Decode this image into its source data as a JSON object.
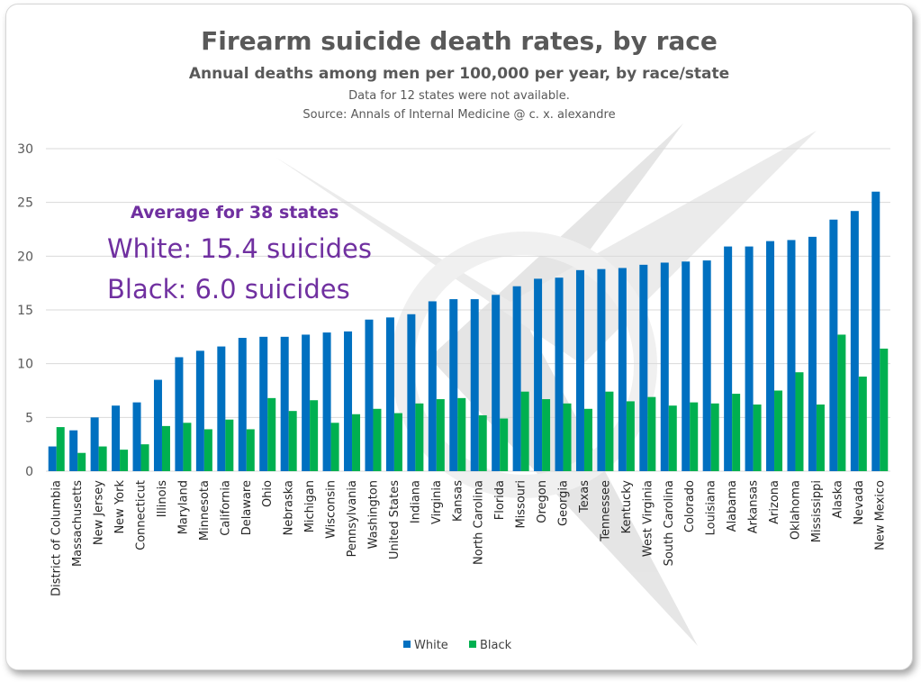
{
  "chart_data": {
    "type": "bar",
    "title": "Firearm suicide death rates, by race",
    "subtitle": "Annual deaths among men per 100,000 per year, by race/state",
    "notes": [
      "Data for 12 states were not available.",
      "Source: Annals of Internal Medicine @ c. x. alexandre"
    ],
    "annotation": {
      "heading": "Average for 38 states",
      "lines": [
        "White: 15.4 suicides",
        "Black: 6.0 suicides"
      ]
    },
    "xlabel": "",
    "ylabel": "",
    "ylim": [
      0,
      30
    ],
    "yticks": [
      "0",
      "5",
      "10",
      "15",
      "20",
      "25",
      "30"
    ],
    "grid": true,
    "legend_position": "bottom",
    "categories": [
      "District of Columbia",
      "Massachusetts",
      "New Jersey",
      "New York",
      "Connecticut",
      "Illinois",
      "Maryland",
      "Minnesota",
      "California",
      "Delaware",
      "Ohio",
      "Nebraska",
      "Michigan",
      "Wisconsin",
      "Pennsylvania",
      "Washington",
      "United States",
      "Indiana",
      "Virginia",
      "Kansas",
      "North Carolina",
      "Florida",
      "Missouri",
      "Oregon",
      "Georgia",
      "Texas",
      "Tennessee",
      "Kentucky",
      "West Virginia",
      "South Carolina",
      "Colorado",
      "Louisiana",
      "Alabama",
      "Arkansas",
      "Arizona",
      "Oklahoma",
      "Mississippi",
      "Alaska",
      "Nevada",
      "New Mexico"
    ],
    "series": [
      {
        "name": "White",
        "color": "#0070c0",
        "values": [
          2.3,
          3.8,
          5.0,
          6.1,
          6.4,
          8.5,
          10.6,
          11.2,
          11.6,
          12.4,
          12.5,
          12.5,
          12.7,
          12.9,
          13.0,
          14.1,
          14.3,
          14.6,
          15.8,
          16.0,
          16.0,
          16.4,
          17.2,
          17.9,
          18.0,
          18.7,
          18.8,
          18.9,
          19.2,
          19.4,
          19.5,
          19.6,
          20.9,
          20.9,
          21.4,
          21.5,
          21.8,
          23.4,
          24.2,
          26.0
        ]
      },
      {
        "name": "Black",
        "color": "#00b050",
        "values": [
          4.1,
          1.7,
          2.3,
          2.0,
          2.5,
          4.2,
          4.5,
          3.9,
          4.8,
          3.9,
          6.8,
          5.6,
          6.6,
          4.5,
          5.3,
          5.8,
          5.4,
          6.3,
          6.7,
          6.8,
          5.2,
          4.9,
          7.4,
          6.7,
          6.3,
          5.8,
          7.4,
          6.5,
          6.9,
          6.1,
          6.4,
          6.3,
          7.2,
          6.2,
          7.5,
          9.2,
          6.2,
          12.7,
          8.8,
          11.4
        ]
      }
    ]
  }
}
